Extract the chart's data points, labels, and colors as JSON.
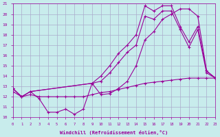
{
  "xlabel": "Windchill (Refroidissement éolien,°C)",
  "ylabel": "",
  "bg_color": "#c8ecec",
  "grid_color": "#aaaacc",
  "line_color": "#990099",
  "x_min": 0,
  "x_max": 23,
  "y_min": 10,
  "y_max": 21,
  "series1_x": [
    0,
    1,
    2,
    3,
    4,
    5,
    6,
    7,
    8,
    9,
    10,
    11,
    12,
    13,
    14,
    15,
    16,
    17,
    18,
    19,
    20,
    21,
    22,
    23
  ],
  "series1_y": [
    12.8,
    12.0,
    12.5,
    11.8,
    10.5,
    10.5,
    10.8,
    10.3,
    10.8,
    13.3,
    12.2,
    12.3,
    12.8,
    13.5,
    15.0,
    17.5,
    18.3,
    19.5,
    20.0,
    20.5,
    20.5,
    19.8,
    14.5,
    13.8
  ],
  "series2_x": [
    0,
    1,
    2,
    3,
    4,
    5,
    6,
    7,
    8,
    9,
    10,
    11,
    12,
    13,
    14,
    15,
    16,
    17,
    18,
    19,
    20,
    21,
    22,
    23
  ],
  "series2_y": [
    12.5,
    12.0,
    12.2,
    12.0,
    12.0,
    12.0,
    12.0,
    12.0,
    12.0,
    12.2,
    12.4,
    12.5,
    12.7,
    12.9,
    13.1,
    13.3,
    13.4,
    13.5,
    13.6,
    13.7,
    13.8,
    13.8,
    13.8,
    13.8
  ],
  "series3_x": [
    0,
    1,
    2,
    9,
    10,
    11,
    12,
    13,
    14,
    15,
    16,
    17,
    18,
    19,
    20,
    21,
    22,
    23
  ],
  "series3_y": [
    12.8,
    12.0,
    12.5,
    13.3,
    14.0,
    15.0,
    16.2,
    17.0,
    18.0,
    20.8,
    20.3,
    20.8,
    20.8,
    18.8,
    17.3,
    18.8,
    14.5,
    13.8
  ],
  "series4_x": [
    0,
    1,
    2,
    9,
    10,
    11,
    12,
    13,
    14,
    15,
    16,
    17,
    18,
    19,
    20,
    21,
    22,
    23
  ],
  "series4_y": [
    12.8,
    12.0,
    12.5,
    13.3,
    13.5,
    14.3,
    15.3,
    16.3,
    17.0,
    19.8,
    19.5,
    20.3,
    20.3,
    18.5,
    16.8,
    18.5,
    14.3,
    13.8
  ]
}
